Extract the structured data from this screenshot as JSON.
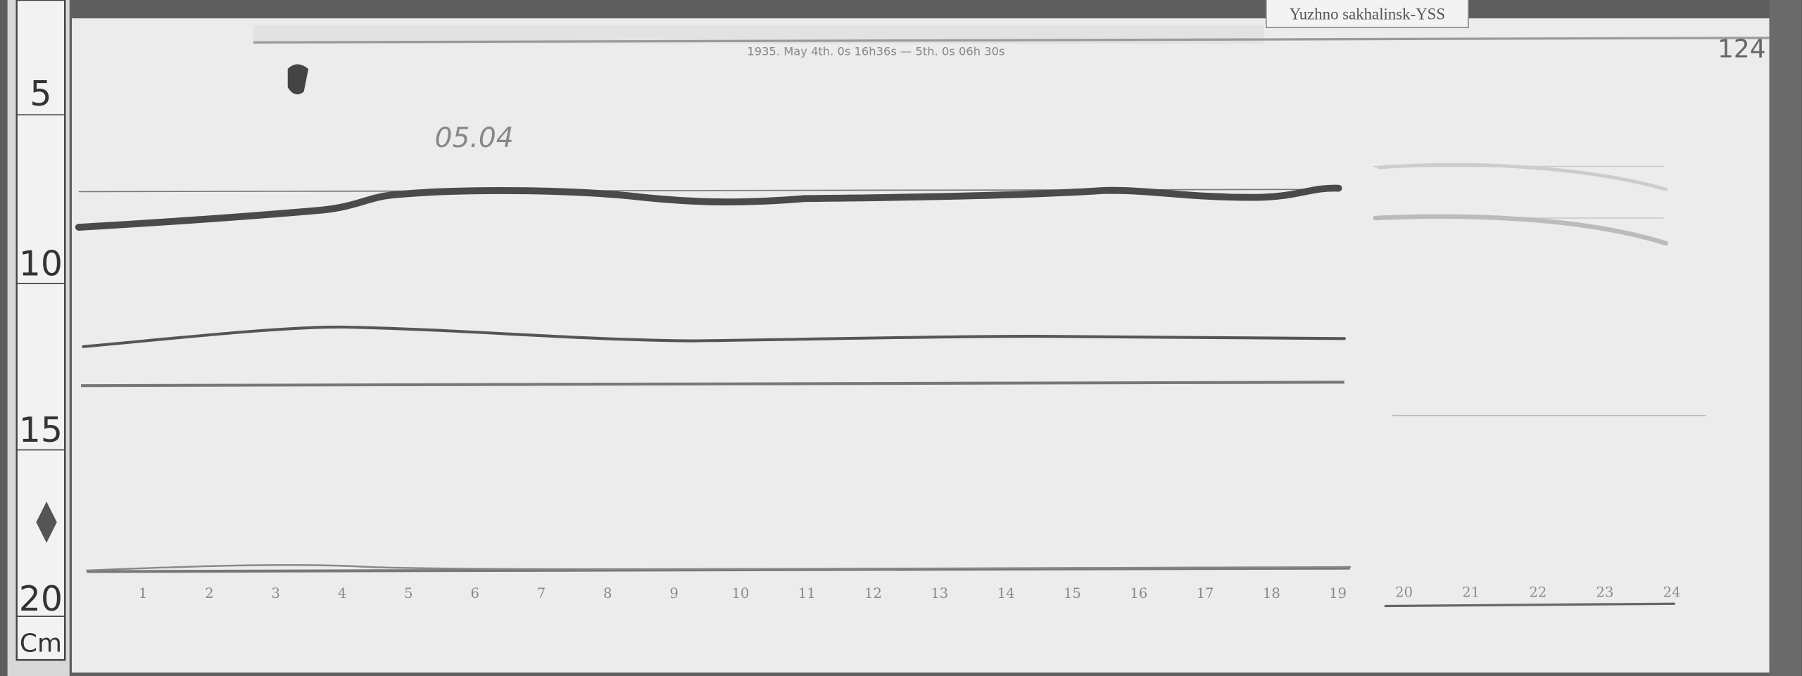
{
  "station_label": "Yuzhno sakhalinsk-YSS",
  "sheet_number": "124",
  "date_stamp": "05.04",
  "record_title": "1935. May 4th. 0s 16h36s — 5th. 0s 06h 30s",
  "ruler": {
    "marks": [
      "5",
      "10",
      "15",
      "20"
    ],
    "unit": "Cm"
  },
  "hour_marks": [
    "1",
    "2",
    "3",
    "4",
    "5",
    "6",
    "7",
    "8",
    "9",
    "10",
    "11",
    "12",
    "13",
    "14",
    "15",
    "16",
    "17",
    "18",
    "19",
    "20",
    "21",
    "22",
    "23",
    "24"
  ],
  "colors": {
    "paper": "#ededed",
    "trace": "#444444",
    "background": "#5a5a5a"
  }
}
